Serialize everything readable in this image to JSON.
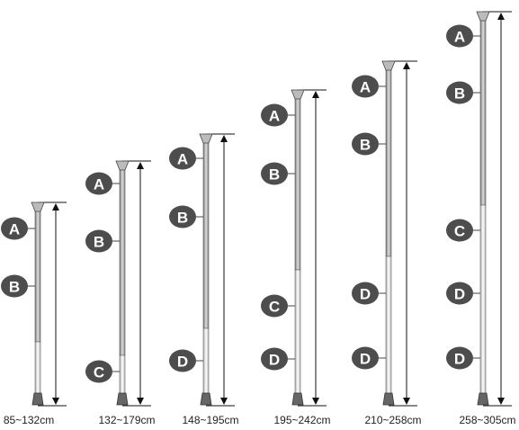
{
  "poles": [
    {
      "range": "85~132cm",
      "segments": [
        "A",
        "B"
      ]
    },
    {
      "range": "132~179cm",
      "segments": [
        "A",
        "B",
        "C"
      ]
    },
    {
      "range": "148~195cm",
      "segments": [
        "A",
        "B",
        "D"
      ]
    },
    {
      "range": "195~242cm",
      "segments": [
        "A",
        "B",
        "C",
        "D"
      ]
    },
    {
      "range": "210~258cm",
      "segments": [
        "A",
        "B",
        "D",
        "D"
      ]
    },
    {
      "range": "258~305cm",
      "segments": [
        "A",
        "B",
        "C",
        "D",
        "D"
      ]
    }
  ]
}
